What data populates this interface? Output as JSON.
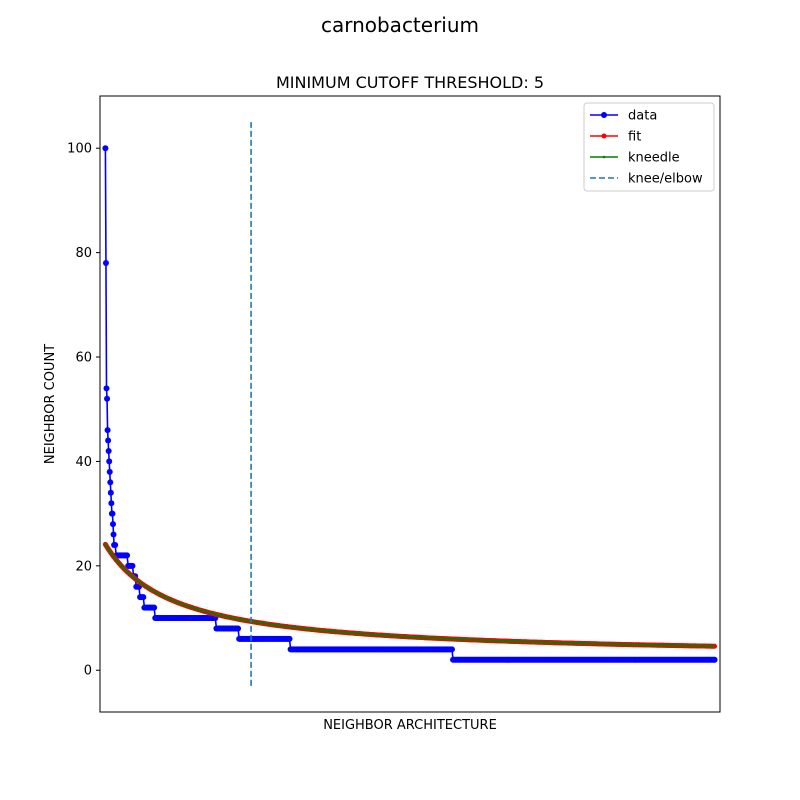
{
  "figure_title": "carnobacterium",
  "chart_data": {
    "type": "line",
    "title": "MINIMUM CUTOFF THRESHOLD: 5",
    "xlabel": "NEIGHBOR ARCHITECTURE",
    "ylabel": "NEIGHBOR COUNT",
    "xlim": [
      -10,
      1135
    ],
    "ylim": [
      -8,
      110
    ],
    "yticks": [
      0,
      20,
      40,
      60,
      80,
      100
    ],
    "x_tick_labels_shown": false,
    "legend_position": "upper right",
    "knee_x": 269,
    "knee_line": {
      "y_from": -3,
      "y_to": 105,
      "color": "#1f77b4",
      "style": "dashed"
    },
    "series": [
      {
        "name": "data",
        "color": "#0000ff",
        "marker": "circle",
        "points": [
          [
            0,
            100
          ],
          [
            1,
            78
          ],
          [
            2,
            54
          ],
          [
            3,
            52
          ],
          [
            4,
            46
          ],
          [
            5,
            44
          ],
          [
            6,
            42
          ],
          [
            7,
            40
          ],
          [
            8,
            38
          ],
          [
            9,
            36
          ],
          [
            10,
            34
          ],
          [
            11,
            32
          ],
          [
            12,
            30
          ],
          [
            13,
            30
          ],
          [
            14,
            28
          ],
          [
            15,
            26
          ],
          [
            16,
            24
          ],
          [
            18,
            24
          ],
          [
            20,
            22
          ],
          [
            40,
            22
          ],
          [
            42,
            20
          ],
          [
            50,
            20
          ],
          [
            52,
            18
          ],
          [
            55,
            18
          ],
          [
            57,
            16
          ],
          [
            62,
            16
          ],
          [
            64,
            14
          ],
          [
            70,
            14
          ],
          [
            72,
            12
          ],
          [
            90,
            12
          ],
          [
            92,
            10
          ],
          [
            130,
            10
          ],
          [
            203,
            10
          ],
          [
            205,
            8
          ],
          [
            245,
            8
          ],
          [
            247,
            6
          ],
          [
            340,
            6
          ],
          [
            342,
            4
          ],
          [
            640,
            4
          ],
          [
            642,
            2
          ],
          [
            1125,
            2
          ]
        ]
      },
      {
        "name": "fit",
        "color": "#ff0000",
        "a": 21.7,
        "b": 126.6,
        "c": 2.4,
        "x_range": [
          0,
          1125
        ]
      },
      {
        "name": "kneedle",
        "color": "#008000",
        "a": 21.7,
        "b": 126.6,
        "c": 2.4,
        "x_range": [
          0,
          1125
        ]
      },
      {
        "name": "knee/elbow",
        "color": "#1f77b4",
        "style": "dashed"
      }
    ]
  }
}
